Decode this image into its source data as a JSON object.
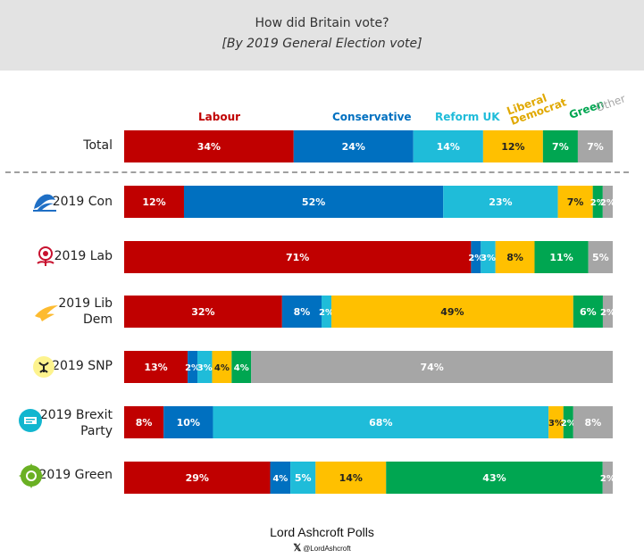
{
  "header": {
    "title": "How did Britain vote?",
    "subtitle": "[By 2019 General Election vote]"
  },
  "footer": {
    "title": "Lord Ashcroft Polls",
    "handle": "@LordAshcroft"
  },
  "icons": {
    "con": "conservative-tree-icon",
    "lab": "labour-rose-icon",
    "libdem": "libdem-bird-icon",
    "snp": "snp-logo-icon",
    "brexit": "brexit-party-icon",
    "green": "green-party-icon",
    "x": "x-logo-icon"
  },
  "chart_data": {
    "type": "bar",
    "orientation": "horizontal",
    "stacked": true,
    "title": "How did Britain vote?",
    "subtitle": "[By 2019 General Election vote]",
    "categories": [
      "Total",
      "2019 Con",
      "2019 Lab",
      "2019 Lib Dem",
      "2019 SNP",
      "2019 Brexit Party",
      "2019 Green"
    ],
    "series": [
      {
        "name": "Labour",
        "color": "#C00000",
        "values": [
          34,
          12,
          71,
          32,
          13,
          8,
          29
        ]
      },
      {
        "name": "Conservative",
        "color": "#0070C0",
        "values": [
          24,
          52,
          2,
          8,
          2,
          10,
          4
        ]
      },
      {
        "name": "Reform UK",
        "color": "#1FBCD9",
        "values": [
          14,
          23,
          3,
          2,
          3,
          68,
          5
        ]
      },
      {
        "name": "Liberal Democrat",
        "color": "#FFC000",
        "values": [
          12,
          7,
          8,
          49,
          4,
          3,
          14
        ]
      },
      {
        "name": "Green",
        "color": "#00A651",
        "values": [
          7,
          2,
          11,
          6,
          4,
          2,
          43
        ]
      },
      {
        "name": "Other",
        "color": "#A6A6A6",
        "values": [
          7,
          2,
          5,
          2,
          74,
          8,
          2
        ]
      }
    ],
    "xlim": [
      0,
      100
    ],
    "legend": "top",
    "grid": false
  }
}
